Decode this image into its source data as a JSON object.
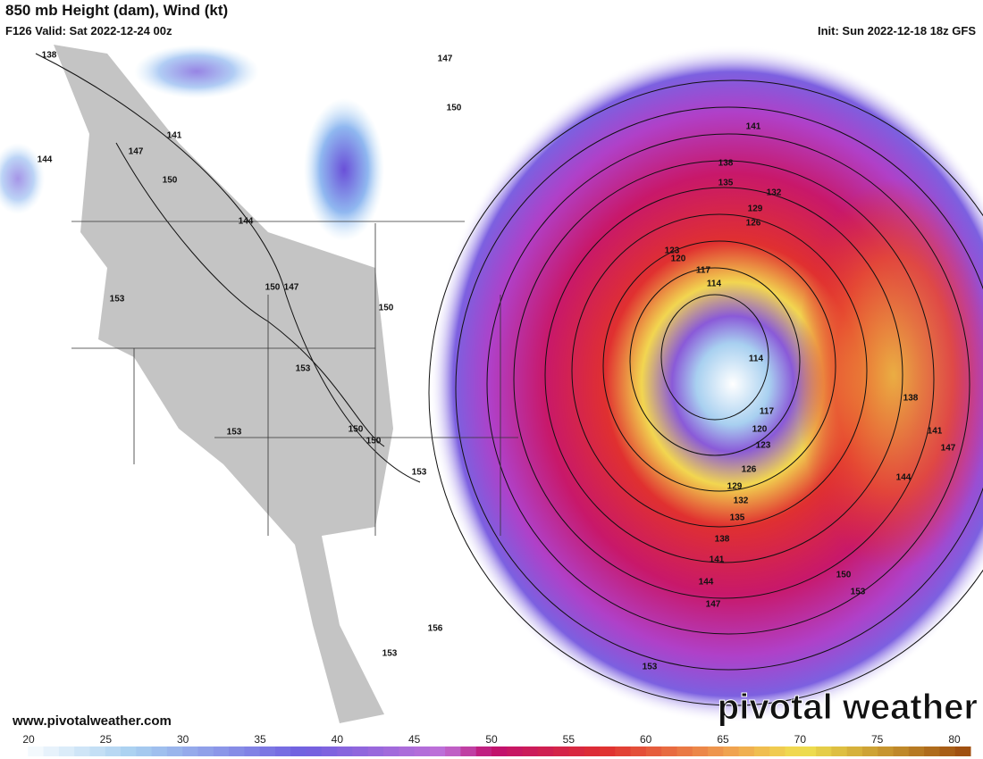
{
  "header": {
    "title": "850 mb Height (dam), Wind (kt)",
    "valid": "F126 Valid: Sat 2022-12-24 00z",
    "init": "Init: Sun 2022-12-18 18z GFS"
  },
  "contour_labels": [
    "138",
    "147",
    "150",
    "141",
    "147",
    "144",
    "150",
    "144",
    "150",
    "147",
    "153",
    "150",
    "153",
    "153",
    "150",
    "150",
    "153",
    "156",
    "153",
    "141",
    "138",
    "135",
    "132",
    "129",
    "126",
    "123",
    "120",
    "117",
    "114",
    "114",
    "117",
    "120",
    "123",
    "126",
    "129",
    "132",
    "135",
    "138",
    "141",
    "144",
    "147",
    "153",
    "150",
    "153",
    "144",
    "147",
    "141",
    "138"
  ],
  "colorbar": {
    "ticks": [
      20,
      25,
      30,
      35,
      40,
      45,
      50,
      55,
      60,
      65,
      70,
      75,
      80
    ]
  },
  "footer": {
    "url": "www.pivotalweather.com",
    "logo": "pivotal weather"
  }
}
